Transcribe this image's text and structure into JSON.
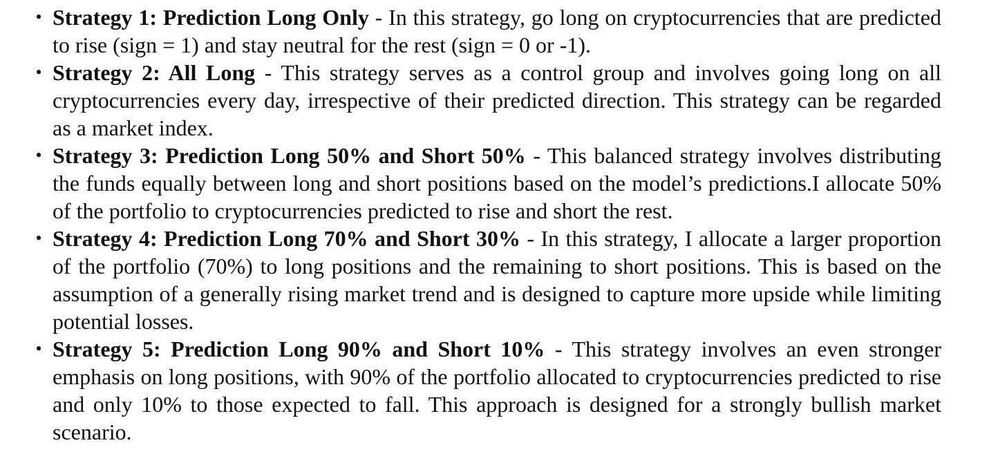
{
  "strategies": [
    {
      "bullet": "•",
      "name": "Strategy 1: Prediction Long Only",
      "separator": " - ",
      "description": "In this strategy, go long on cryptocurrencies that are predicted to rise (sign = 1) and stay neutral for the rest (sign = 0 or -1)."
    },
    {
      "bullet": "•",
      "name": "Strategy 2: All Long",
      "separator": " - ",
      "description": "This strategy serves as a control group and involves going long on all cryptocurrencies every day, irrespective of their predicted direction. This strategy can be regarded as a market index."
    },
    {
      "bullet": "•",
      "name": "Strategy 3: Prediction Long 50% and Short 50%",
      "separator": " - ",
      "description": "This balanced strategy involves distributing the funds equally between long and short positions based on the model’s predictions.I allocate 50% of the portfolio to cryptocurrencies predicted to rise and short the rest."
    },
    {
      "bullet": "•",
      "name": "Strategy 4: Prediction Long 70% and Short 30%",
      "separator": " - ",
      "description": "In this strategy, I allocate a larger proportion of the portfolio (70%) to long positions and the remaining to short positions. This is based on the assumption of a generally rising market trend and is designed to capture more upside while limiting potential losses."
    },
    {
      "bullet": "•",
      "name": "Strategy 5: Prediction Long 90% and Short 10%",
      "separator": " - ",
      "description": "This strategy involves an even stronger emphasis on long positions, with 90% of the portfolio allocated to cryptocurrencies predicted to rise and only 10% to those expected to fall. This approach is designed for a strongly bullish market scenario."
    }
  ]
}
